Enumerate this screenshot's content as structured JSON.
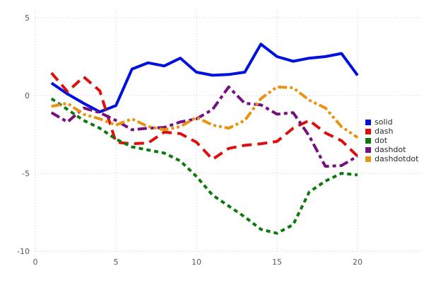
{
  "chart_data": {
    "type": "line",
    "title": "",
    "xlabel": "",
    "ylabel": "",
    "xlim": [
      0,
      20
    ],
    "ylim": [
      -10,
      5
    ],
    "x_ticks": [
      0,
      5,
      10,
      15,
      20
    ],
    "y_ticks": [
      5,
      0,
      -5,
      -10
    ],
    "grid": true,
    "legend_position": "right",
    "x": [
      1,
      2,
      3,
      4,
      5,
      6,
      7,
      8,
      9,
      10,
      11,
      12,
      13,
      14,
      15,
      16,
      17,
      18,
      19,
      20
    ],
    "series": [
      {
        "name": "solid",
        "color": "#0010dd",
        "dash": "",
        "values": [
          0.8,
          0.1,
          -0.5,
          -1.05,
          -0.65,
          1.7,
          2.1,
          1.9,
          2.4,
          1.5,
          1.3,
          1.35,
          1.5,
          3.3,
          2.5,
          2.2,
          2.4,
          2.5,
          2.7,
          1.3
        ]
      },
      {
        "name": "dash",
        "color": "#dd0f0f",
        "dash": "14 8",
        "values": [
          1.45,
          0.25,
          1.2,
          0.3,
          -3.0,
          -3.1,
          -3.05,
          -2.35,
          -2.45,
          -3.0,
          -4.1,
          -3.4,
          -3.2,
          -3.1,
          -2.95,
          -2.1,
          -1.6,
          -2.4,
          -2.9,
          -3.9
        ]
      },
      {
        "name": "dot",
        "color": "#0e7a0e",
        "dash": "6 5",
        "values": [
          -0.2,
          -0.9,
          -1.6,
          -2.1,
          -2.8,
          -3.3,
          -3.5,
          -3.7,
          -4.2,
          -5.2,
          -6.4,
          -7.1,
          -7.8,
          -8.6,
          -8.85,
          -8.3,
          -6.2,
          -5.5,
          -5.0,
          -5.1
        ]
      },
      {
        "name": "dashdot",
        "color": "#75117f",
        "dash": "13 5 5 5",
        "values": [
          -1.1,
          -1.7,
          -0.8,
          -1.1,
          -1.6,
          -2.2,
          -2.1,
          -2.05,
          -1.7,
          -1.5,
          -0.9,
          0.55,
          -0.5,
          -0.6,
          -1.2,
          -1.1,
          -2.6,
          -4.55,
          -4.5,
          -3.9
        ]
      },
      {
        "name": "dashdotdot",
        "color": "#e89410",
        "dash": "13 4 4 4 4 4",
        "values": [
          -0.7,
          -0.5,
          -1.2,
          -1.5,
          -1.9,
          -1.5,
          -2.0,
          -2.2,
          -2.0,
          -1.4,
          -1.9,
          -2.1,
          -1.6,
          -0.2,
          0.55,
          0.5,
          -0.3,
          -0.8,
          -2.0,
          -2.7
        ]
      }
    ]
  }
}
